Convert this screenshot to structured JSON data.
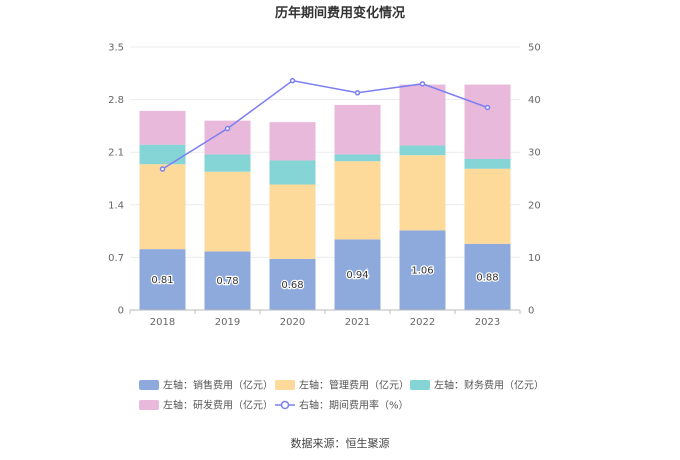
{
  "chart_data": {
    "type": "bar",
    "stacked": true,
    "title": "历年期间费用变化情况",
    "categories": [
      "2018",
      "2019",
      "2020",
      "2021",
      "2022",
      "2023"
    ],
    "series": [
      {
        "name": "左轴：销售费用（亿元）",
        "values": [
          0.81,
          0.78,
          0.68,
          0.94,
          1.06,
          0.88
        ],
        "color": "#8eaadc"
      },
      {
        "name": "左轴：管理费用（亿元）",
        "values": [
          1.13,
          1.06,
          0.99,
          1.04,
          1.0,
          1.0
        ],
        "color": "#fdd99a"
      },
      {
        "name": "左轴：财务费用（亿元）",
        "values": [
          0.26,
          0.23,
          0.32,
          0.09,
          0.13,
          0.13
        ],
        "color": "#85d4d6"
      },
      {
        "name": "左轴：研发费用（亿元）",
        "values": [
          0.45,
          0.45,
          0.51,
          0.66,
          0.81,
          0.99
        ],
        "color": "#e8b9da"
      }
    ],
    "line_series": {
      "name": "右轴：期间费用率（%）",
      "values": [
        26.8,
        34.5,
        43.6,
        41.3,
        43.0,
        38.5
      ],
      "color": "#7b7ff0",
      "axis": "right"
    },
    "data_labels": [
      "0.81",
      "0.78",
      "0.68",
      "0.94",
      "1.06",
      "0.88"
    ],
    "yleft": {
      "ticks": [
        "0",
        "0.7",
        "1.4",
        "2.1",
        "2.8",
        "3.5"
      ],
      "ylim": [
        0,
        3.5
      ]
    },
    "yright": {
      "ticks": [
        "0",
        "10",
        "20",
        "30",
        "40",
        "50"
      ],
      "ylim": [
        0,
        50
      ]
    },
    "grid": true,
    "legend_position": "bottom"
  },
  "source": "数据来源：恒生聚源"
}
